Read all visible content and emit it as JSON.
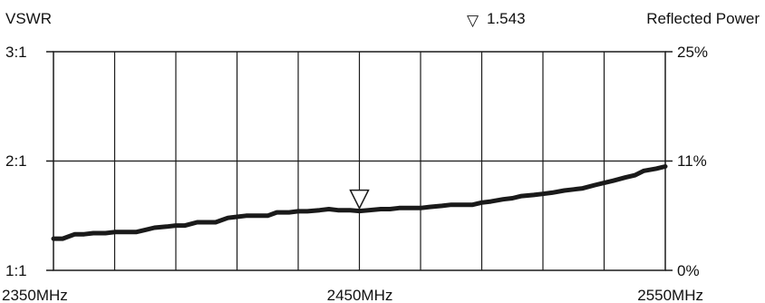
{
  "chart_data": {
    "type": "line",
    "title": "",
    "left_axis": {
      "label": "VSWR",
      "ticks": [
        {
          "value": 3,
          "label": "3:1"
        },
        {
          "value": 2,
          "label": "2:1"
        },
        {
          "value": 1,
          "label": "1:1"
        }
      ],
      "ylim": [
        1,
        3
      ]
    },
    "right_axis": {
      "label": "Reflected Power",
      "ticks": [
        {
          "value": 25,
          "label": "25%"
        },
        {
          "value": 11,
          "label": "11%"
        },
        {
          "value": 0,
          "label": "0%"
        }
      ]
    },
    "x_axis": {
      "unit": "MHz",
      "xlim": [
        2350,
        2550
      ],
      "ticks": [
        {
          "value": 2350,
          "label": "2350MHz"
        },
        {
          "value": 2450,
          "label": "2450MHz"
        },
        {
          "value": 2550,
          "label": "2550MHz"
        }
      ],
      "gridlines": [
        2370,
        2390,
        2410,
        2430,
        2450,
        2470,
        2490,
        2510,
        2530
      ]
    },
    "grid": true,
    "marker": {
      "x": 2450,
      "y": 1.543,
      "label": "1.543",
      "symbol": "▽"
    },
    "series": [
      {
        "name": "",
        "color": "#1a1a1a",
        "x": [
          2350,
          2353,
          2357,
          2360,
          2363,
          2367,
          2370,
          2373,
          2377,
          2380,
          2383,
          2387,
          2390,
          2393,
          2397,
          2400,
          2403,
          2407,
          2410,
          2413,
          2417,
          2420,
          2423,
          2427,
          2430,
          2433,
          2437,
          2440,
          2443,
          2447,
          2450,
          2453,
          2457,
          2460,
          2463,
          2467,
          2470,
          2473,
          2477,
          2480,
          2483,
          2487,
          2490,
          2493,
          2497,
          2500,
          2503,
          2507,
          2510,
          2513,
          2517,
          2520,
          2523,
          2527,
          2530,
          2533,
          2537,
          2540,
          2543,
          2547,
          2550
        ],
        "values": [
          1.29,
          1.29,
          1.33,
          1.33,
          1.34,
          1.34,
          1.35,
          1.35,
          1.35,
          1.37,
          1.39,
          1.4,
          1.41,
          1.41,
          1.44,
          1.44,
          1.44,
          1.48,
          1.49,
          1.5,
          1.5,
          1.5,
          1.53,
          1.53,
          1.54,
          1.54,
          1.55,
          1.56,
          1.55,
          1.55,
          1.543,
          1.55,
          1.56,
          1.56,
          1.57,
          1.57,
          1.57,
          1.58,
          1.59,
          1.6,
          1.6,
          1.6,
          1.62,
          1.63,
          1.65,
          1.66,
          1.68,
          1.69,
          1.7,
          1.71,
          1.73,
          1.74,
          1.75,
          1.78,
          1.8,
          1.82,
          1.85,
          1.87,
          1.91,
          1.93,
          1.95
        ]
      }
    ]
  }
}
